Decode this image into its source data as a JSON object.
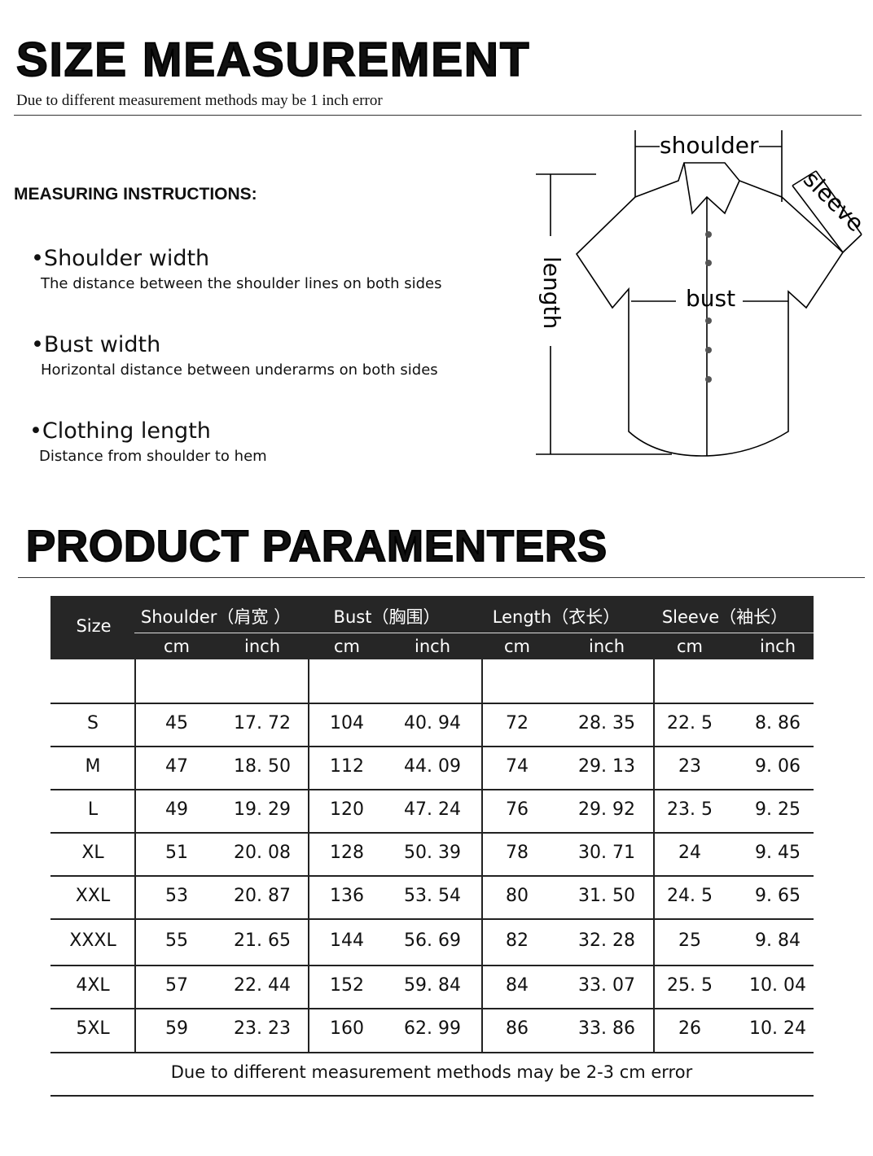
{
  "header": {
    "title": "SIZE  MEASUREMENT",
    "subtitle": "Due to different measurement methods may be 1 inch error"
  },
  "instructions": {
    "title": "MEASURING INSTRUCTIONS:",
    "items": [
      {
        "title": "•Shoulder width",
        "desc": "The distance between the shoulder lines on both sides"
      },
      {
        "title": "•Bust width",
        "desc": "Horizontal distance between underarms on both sides"
      },
      {
        "title": "•Clothing length",
        "desc": "Distance from shoulder to hem"
      }
    ]
  },
  "diagram": {
    "shoulder": "shoulder",
    "sleeve": "sleeve",
    "length": "length",
    "bust": "bust"
  },
  "params": {
    "title": "PRODUCT PARAMENTERS"
  },
  "table": {
    "size_header": "Size",
    "groups": [
      "Shoulder（肩宽 ）",
      "Bust（胸围）",
      "Length（衣长）",
      "Sleeve（袖长）"
    ],
    "units": [
      "cm",
      "inch",
      "cm",
      "inch",
      "cm",
      "inch",
      "cm",
      "inch"
    ],
    "rows": [
      [
        "S",
        "45",
        "17. 72",
        "104",
        "40. 94",
        "72",
        "28. 35",
        "22. 5",
        "8. 86"
      ],
      [
        "M",
        "47",
        "18. 50",
        "112",
        "44. 09",
        "74",
        "29. 13",
        "23",
        "9. 06"
      ],
      [
        "L",
        "49",
        "19. 29",
        "120",
        "47. 24",
        "76",
        "29. 92",
        "23. 5",
        "9. 25"
      ],
      [
        "XL",
        "51",
        "20. 08",
        "128",
        "50. 39",
        "78",
        "30. 71",
        "24",
        "9. 45"
      ],
      [
        "XXL",
        "53",
        "20. 87",
        "136",
        "53. 54",
        "80",
        "31. 50",
        "24. 5",
        "9. 65"
      ],
      [
        "XXXL",
        "55",
        "21. 65",
        "144",
        "56. 69",
        "82",
        "32. 28",
        "25",
        "9. 84"
      ],
      [
        "4XL",
        "57",
        "22. 44",
        "152",
        "59. 84",
        "84",
        "33. 07",
        "25. 5",
        "10. 04"
      ],
      [
        "5XL",
        "59",
        "23. 23",
        "160",
        "62. 99",
        "86",
        "33. 86",
        "26",
        "10. 24"
      ]
    ],
    "footer": "Due to different measurement methods may be 2-3 cm error"
  }
}
